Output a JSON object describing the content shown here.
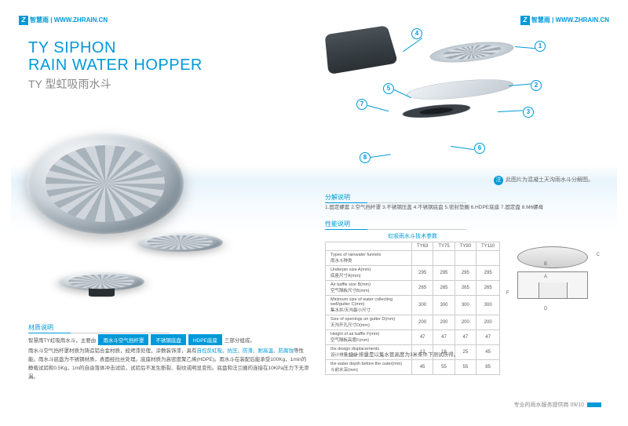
{
  "header": {
    "brand_l": "智慧雨",
    "url_l": "WWW.ZHRAIN.CN",
    "brand_r": "智慧雨",
    "url_r": "WWW.ZHRAIN.CN"
  },
  "title": {
    "en1": "TY SIPHON",
    "en2": "RAIN WATER HOPPER",
    "cn": "TY 型虹吸雨水斗"
  },
  "callouts": {
    "c1": "1",
    "c2": "2",
    "c3": "3",
    "c4": "4",
    "c5": "5",
    "c6": "6",
    "c7": "7",
    "c8": "8"
  },
  "note": "此图片为混凝土天沟雨水斗分解图。",
  "sections": {
    "parts": "分解说明",
    "perf": "性能说明",
    "material": "材质说明"
  },
  "parts_list": "1.固定螺套 2.空气挡杆罩 3.不锈钢压盖 4.不锈钢底盘 5.密封垫圈 6.HDPE底座 7.固定盘 8.M6螺母",
  "table": {
    "title": "虹吸雨水斗技术参数",
    "cols": [
      "",
      "TY63",
      "TY75",
      "TY90",
      "TY110"
    ],
    "rows": [
      {
        "label": "Types of rainwater funnels\n雨水斗种类",
        "v": [
          "",
          "",
          "",
          ""
        ]
      },
      {
        "label": "Underpin size A(mm)\n底座尺寸A(mm)",
        "v": [
          "295",
          "295",
          "295",
          "295"
        ]
      },
      {
        "label": "Air baffle size B(mm)\n空气隔板尺寸B(mm)",
        "v": [
          "265",
          "265",
          "265",
          "265"
        ]
      },
      {
        "label": "Minimum size of water collecting well/gutter C(mm)\n集水井/天沟最小尺寸",
        "v": [
          "300",
          "300",
          "300",
          "300"
        ]
      },
      {
        "label": "Size of openings on gutter D(mm)\n天沟开孔尺寸D(mm)",
        "v": [
          "200",
          "200",
          "200",
          "200"
        ]
      },
      {
        "label": "Height of air baffle F(mm)\n空气隔板高度F(mm)",
        "v": [
          "47",
          "47",
          "47",
          "47"
        ]
      },
      {
        "label": "the design displacements\n设计排量(L/s)",
        "v": [
          "12",
          "18",
          "25",
          "45"
        ]
      },
      {
        "label": "the water depth before the outer(mm)\n斗前水深(mm)",
        "v": [
          "45",
          "55",
          "55",
          "85"
        ]
      }
    ]
  },
  "diagram": {
    "dimC": "C",
    "dimB": "B",
    "dimA": "A",
    "dimD": "D",
    "dimF": "F"
  },
  "design_note": "设计排量是以集水管高度为3米条件下测试所得。",
  "material": {
    "intro": "智慧雨TY虹吸雨水斗，主要由",
    "tags": [
      "雨水斗空气挡杆罩",
      "不锈钢底盘",
      "HDPE底座"
    ],
    "intro2": "三部分组成。",
    "body": "雨水斗空气挡杆罩材质为铸造铝合金材质，经烤漆处理，涂敷装饰漆，具有自控反虹吸、抗压、防滑、耐高温、防腐蚀等性能。雨水斗底盘为不锈钢材质，表面经拉丝处理。底座材质为高密度聚乙烯(HDPE)。雨水斗在装配后能承受100Kg，1min的静载试验和0.5Kg，1m的自由落体冲击试验，试验后不发生断裂、裂纹或明显变形。底盘和法兰圈的连接在10KPa压力下无渗漏。"
  },
  "footer": "专业的雨水服务提供商 09/10",
  "colors": {
    "brand": "#0099d9",
    "text": "#555",
    "muted": "#888"
  }
}
